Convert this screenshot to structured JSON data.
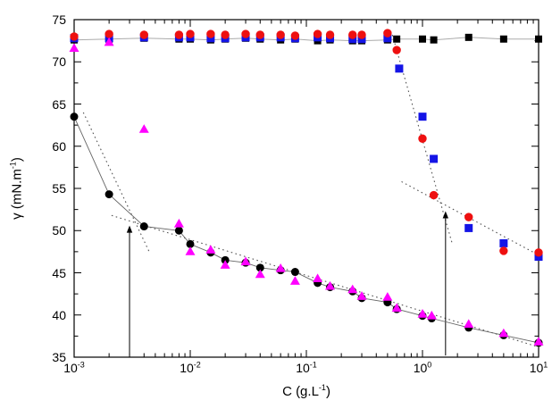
{
  "chart_data": {
    "type": "scatter",
    "title": "",
    "xlabel": "C (g.L⁻¹)",
    "ylabel": "γ (mN.m⁻¹)",
    "xlabel_parts": {
      "main": "C (g.L",
      "sup": "-1",
      "close": ")"
    },
    "ylabel_parts": {
      "main": "γ (mN.m",
      "sup": "-1",
      "close": ")"
    },
    "x_scale": "log",
    "xlim_exp": [
      -3,
      1
    ],
    "ylim": [
      35,
      75
    ],
    "y_ticks": [
      35,
      40,
      45,
      50,
      55,
      60,
      65,
      70,
      75
    ],
    "y_minor_step": 2.5,
    "x_tick_labels": [
      {
        "base": "10",
        "exp": "-3"
      },
      {
        "base": "10",
        "exp": "-2"
      },
      {
        "base": "10",
        "exp": "-1"
      },
      {
        "base": "10",
        "exp": "0"
      },
      {
        "base": "10",
        "exp": "1"
      }
    ],
    "grid": false,
    "legend": "none",
    "frame": "box",
    "colors": {
      "black": "#000000",
      "blue": "#1414e6",
      "red": "#ee1010",
      "magenta": "#ff00ff",
      "top_connector": "#aaaaaa",
      "bottom_connector": "#666666",
      "dotted_guides": "#555555"
    },
    "series": [
      {
        "name": "black-squares-plateau",
        "marker": "square",
        "color": "#000000",
        "size": 8,
        "line": {
          "color": "#aaaaaa",
          "width": 1
        },
        "points": [
          [
            0.001,
            72.6
          ],
          [
            0.002,
            72.7
          ],
          [
            0.004,
            72.8
          ],
          [
            0.008,
            72.7
          ],
          [
            0.01,
            72.7
          ],
          [
            0.015,
            72.6
          ],
          [
            0.02,
            72.7
          ],
          [
            0.03,
            72.8
          ],
          [
            0.04,
            72.7
          ],
          [
            0.06,
            72.6
          ],
          [
            0.08,
            72.7
          ],
          [
            0.125,
            72.5
          ],
          [
            0.16,
            72.6
          ],
          [
            0.25,
            72.5
          ],
          [
            0.3,
            72.5
          ],
          [
            0.5,
            72.6
          ],
          [
            0.6,
            72.7
          ],
          [
            1.0,
            72.7
          ],
          [
            1.25,
            72.6
          ],
          [
            2.5,
            72.9
          ],
          [
            5,
            72.7
          ],
          [
            10,
            72.7
          ]
        ]
      },
      {
        "name": "blue-squares",
        "marker": "square",
        "color": "#1414e6",
        "size": 9,
        "line": null,
        "points": [
          [
            0.001,
            72.8
          ],
          [
            0.002,
            72.8
          ],
          [
            0.004,
            72.9
          ],
          [
            0.008,
            72.9
          ],
          [
            0.01,
            72.9
          ],
          [
            0.015,
            72.8
          ],
          [
            0.02,
            72.8
          ],
          [
            0.03,
            72.9
          ],
          [
            0.04,
            72.9
          ],
          [
            0.06,
            72.9
          ],
          [
            0.08,
            72.8
          ],
          [
            0.125,
            72.9
          ],
          [
            0.16,
            72.8
          ],
          [
            0.25,
            72.7
          ],
          [
            0.3,
            72.7
          ],
          [
            0.5,
            72.8
          ],
          [
            0.63,
            69.2
          ],
          [
            1.0,
            63.5
          ],
          [
            1.25,
            58.5
          ],
          [
            2.5,
            50.3
          ],
          [
            5,
            48.5
          ],
          [
            10,
            46.9
          ]
        ]
      },
      {
        "name": "red-circles",
        "marker": "circle",
        "color": "#ee1010",
        "size": 9.4,
        "line": null,
        "points": [
          [
            0.001,
            73.0
          ],
          [
            0.002,
            73.3
          ],
          [
            0.004,
            73.2
          ],
          [
            0.008,
            73.2
          ],
          [
            0.01,
            73.3
          ],
          [
            0.015,
            73.3
          ],
          [
            0.02,
            73.2
          ],
          [
            0.03,
            73.3
          ],
          [
            0.04,
            73.2
          ],
          [
            0.06,
            73.2
          ],
          [
            0.08,
            73.1
          ],
          [
            0.125,
            73.3
          ],
          [
            0.16,
            73.2
          ],
          [
            0.25,
            73.2
          ],
          [
            0.3,
            73.2
          ],
          [
            0.5,
            73.4
          ],
          [
            0.6,
            71.4
          ],
          [
            1.0,
            60.9
          ],
          [
            1.25,
            54.2
          ],
          [
            2.5,
            51.6
          ],
          [
            5,
            47.6
          ],
          [
            10,
            47.4
          ]
        ]
      },
      {
        "name": "black-circles",
        "marker": "circle",
        "color": "#000000",
        "size": 9,
        "line": {
          "color": "#666666",
          "width": 0.9
        },
        "points": [
          [
            0.001,
            63.5
          ],
          [
            0.002,
            54.3
          ],
          [
            0.004,
            50.5
          ],
          [
            0.008,
            50.0
          ],
          [
            0.01,
            48.4
          ],
          [
            0.015,
            47.4
          ],
          [
            0.02,
            46.5
          ],
          [
            0.03,
            46.2
          ],
          [
            0.04,
            45.6
          ],
          [
            0.06,
            45.3
          ],
          [
            0.08,
            45.1
          ],
          [
            0.125,
            43.8
          ],
          [
            0.16,
            43.3
          ],
          [
            0.25,
            42.8
          ],
          [
            0.3,
            42.0
          ],
          [
            0.5,
            41.5
          ],
          [
            0.6,
            40.7
          ],
          [
            1.0,
            39.9
          ],
          [
            1.2,
            39.6
          ],
          [
            2.5,
            38.5
          ],
          [
            5,
            37.6
          ],
          [
            10,
            36.7
          ]
        ]
      },
      {
        "name": "magenta-triangles",
        "marker": "triangle",
        "color": "#ff00ff",
        "size": 11,
        "line": null,
        "points": [
          [
            0.001,
            71.7
          ],
          [
            0.002,
            72.4
          ],
          [
            0.004,
            62.1
          ],
          [
            0.008,
            50.9
          ],
          [
            0.01,
            47.6
          ],
          [
            0.015,
            47.8
          ],
          [
            0.02,
            46.0
          ],
          [
            0.03,
            46.4
          ],
          [
            0.04,
            44.9
          ],
          [
            0.06,
            45.6
          ],
          [
            0.08,
            44.1
          ],
          [
            0.125,
            44.4
          ],
          [
            0.16,
            43.5
          ],
          [
            0.25,
            43.1
          ],
          [
            0.3,
            42.3
          ],
          [
            0.5,
            42.2
          ],
          [
            0.6,
            40.9
          ],
          [
            1.0,
            40.2
          ],
          [
            1.2,
            40.0
          ],
          [
            2.5,
            39.0
          ],
          [
            5,
            37.9
          ],
          [
            10,
            36.9
          ]
        ]
      }
    ],
    "dotted_guides": [
      {
        "from": [
          0.0012,
          64.0
        ],
        "to": [
          0.0045,
          47.3
        ]
      },
      {
        "from": [
          0.0021,
          51.8
        ],
        "to": [
          10,
          36.2
        ]
      },
      {
        "from": [
          0.55,
          73.2
        ],
        "to": [
          1.8,
          48.5
        ]
      },
      {
        "from": [
          0.66,
          55.8
        ],
        "to": [
          10,
          47.1
        ]
      }
    ],
    "arrows": [
      {
        "x": 0.003,
        "y_from": 35.2,
        "y_tip": 50.6
      },
      {
        "x": 1.58,
        "y_from": 35.2,
        "y_tip": 52.3
      }
    ]
  }
}
